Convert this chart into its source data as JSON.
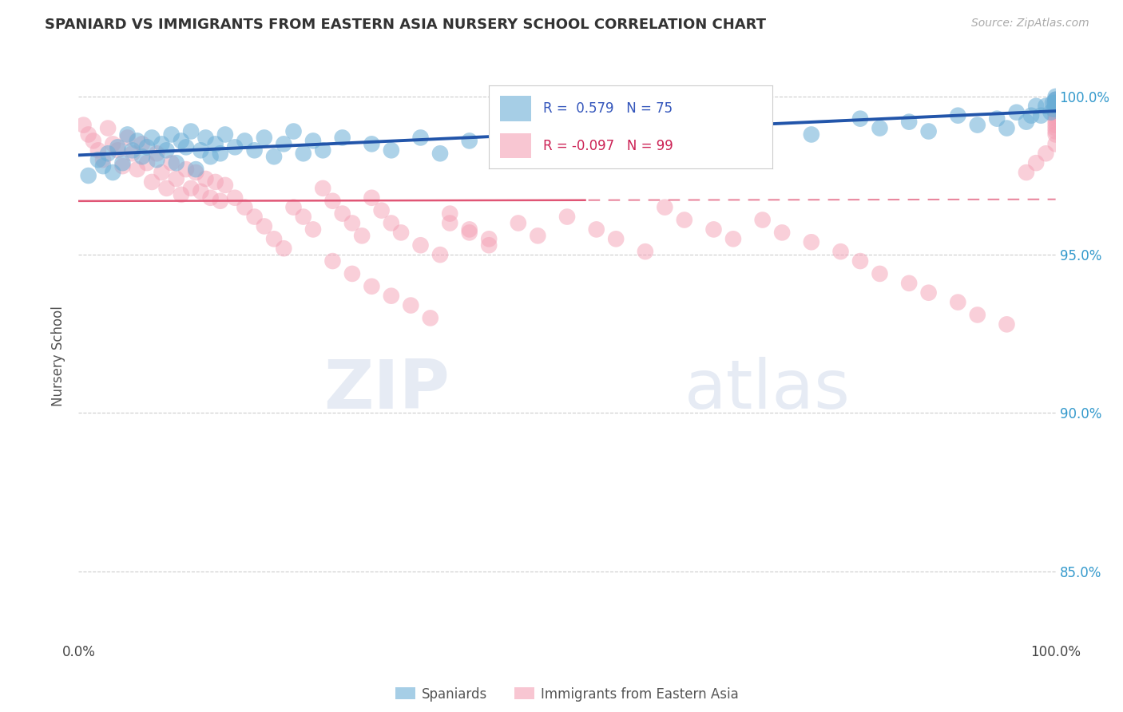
{
  "title": "SPANIARD VS IMMIGRANTS FROM EASTERN ASIA NURSERY SCHOOL CORRELATION CHART",
  "source": "Source: ZipAtlas.com",
  "ylabel": "Nursery School",
  "xlim": [
    0.0,
    1.0
  ],
  "ylim": [
    0.828,
    1.008
  ],
  "R_blue": 0.579,
  "N_blue": 75,
  "R_pink": -0.097,
  "N_pink": 99,
  "blue_scatter_color": "#6baed6",
  "pink_scatter_color": "#f4a0b5",
  "blue_line_color": "#2255aa",
  "pink_line_color": "#e05575",
  "legend_label_blue": "Spaniards",
  "legend_label_pink": "Immigrants from Eastern Asia",
  "y_ticks": [
    0.85,
    0.9,
    0.95,
    1.0
  ],
  "y_tick_labels": [
    "85.0%",
    "90.0%",
    "95.0%",
    "100.0%"
  ],
  "x_tick_labels": [
    "0.0%",
    "100.0%"
  ],
  "blue_x": [
    0.01,
    0.02,
    0.025,
    0.03,
    0.035,
    0.04,
    0.045,
    0.05,
    0.055,
    0.06,
    0.065,
    0.07,
    0.075,
    0.08,
    0.085,
    0.09,
    0.095,
    0.1,
    0.105,
    0.11,
    0.115,
    0.12,
    0.125,
    0.13,
    0.135,
    0.14,
    0.145,
    0.15,
    0.16,
    0.17,
    0.18,
    0.19,
    0.2,
    0.21,
    0.22,
    0.23,
    0.24,
    0.25,
    0.27,
    0.3,
    0.32,
    0.35,
    0.37,
    0.4,
    0.43,
    0.47,
    0.5,
    0.55,
    0.6,
    0.65,
    0.7,
    0.75,
    0.8,
    0.82,
    0.85,
    0.87,
    0.9,
    0.92,
    0.94,
    0.95,
    0.96,
    0.97,
    0.975,
    0.98,
    0.985,
    0.99,
    0.995,
    0.997,
    0.998,
    0.999,
    1.0,
    1.0,
    1.0,
    1.0,
    1.0
  ],
  "blue_y": [
    0.975,
    0.98,
    0.978,
    0.982,
    0.976,
    0.984,
    0.979,
    0.988,
    0.983,
    0.986,
    0.981,
    0.984,
    0.987,
    0.98,
    0.985,
    0.983,
    0.988,
    0.979,
    0.986,
    0.984,
    0.989,
    0.977,
    0.983,
    0.987,
    0.981,
    0.985,
    0.982,
    0.988,
    0.984,
    0.986,
    0.983,
    0.987,
    0.981,
    0.985,
    0.989,
    0.982,
    0.986,
    0.983,
    0.987,
    0.985,
    0.983,
    0.987,
    0.982,
    0.986,
    0.989,
    0.985,
    0.99,
    0.988,
    0.992,
    0.989,
    0.991,
    0.988,
    0.993,
    0.99,
    0.992,
    0.989,
    0.994,
    0.991,
    0.993,
    0.99,
    0.995,
    0.992,
    0.994,
    0.997,
    0.994,
    0.997,
    0.995,
    0.998,
    0.996,
    0.998,
    0.997,
    0.999,
    0.998,
    0.999,
    1.0
  ],
  "pink_x": [
    0.005,
    0.01,
    0.015,
    0.02,
    0.025,
    0.03,
    0.035,
    0.04,
    0.045,
    0.05,
    0.055,
    0.06,
    0.065,
    0.07,
    0.075,
    0.08,
    0.085,
    0.09,
    0.095,
    0.1,
    0.105,
    0.11,
    0.115,
    0.12,
    0.125,
    0.13,
    0.135,
    0.14,
    0.145,
    0.15,
    0.16,
    0.17,
    0.18,
    0.19,
    0.2,
    0.21,
    0.22,
    0.23,
    0.24,
    0.25,
    0.26,
    0.27,
    0.28,
    0.29,
    0.3,
    0.31,
    0.32,
    0.33,
    0.35,
    0.37,
    0.38,
    0.4,
    0.42,
    0.45,
    0.47,
    0.5,
    0.53,
    0.55,
    0.58,
    0.6,
    0.62,
    0.65,
    0.67,
    0.7,
    0.72,
    0.75,
    0.78,
    0.8,
    0.82,
    0.85,
    0.87,
    0.9,
    0.92,
    0.95,
    0.97,
    0.98,
    0.99,
    1.0,
    1.0,
    1.0,
    1.0,
    1.0,
    1.0,
    1.0,
    1.0,
    1.0,
    1.0,
    1.0,
    1.0,
    1.0,
    0.26,
    0.28,
    0.3,
    0.32,
    0.34,
    0.36,
    0.38,
    0.4,
    0.42
  ],
  "pink_y": [
    0.991,
    0.988,
    0.986,
    0.983,
    0.98,
    0.99,
    0.985,
    0.983,
    0.978,
    0.987,
    0.982,
    0.977,
    0.985,
    0.979,
    0.973,
    0.982,
    0.976,
    0.971,
    0.979,
    0.974,
    0.969,
    0.977,
    0.971,
    0.976,
    0.97,
    0.974,
    0.968,
    0.973,
    0.967,
    0.972,
    0.968,
    0.965,
    0.962,
    0.959,
    0.955,
    0.952,
    0.965,
    0.962,
    0.958,
    0.971,
    0.967,
    0.963,
    0.96,
    0.956,
    0.968,
    0.964,
    0.96,
    0.957,
    0.953,
    0.95,
    0.963,
    0.958,
    0.955,
    0.96,
    0.956,
    0.962,
    0.958,
    0.955,
    0.951,
    0.965,
    0.961,
    0.958,
    0.955,
    0.961,
    0.957,
    0.954,
    0.951,
    0.948,
    0.944,
    0.941,
    0.938,
    0.935,
    0.931,
    0.928,
    0.976,
    0.979,
    0.982,
    0.985,
    0.988,
    0.99,
    0.992,
    0.994,
    0.996,
    0.998,
    0.999,
    0.997,
    0.995,
    0.993,
    0.991,
    0.989,
    0.948,
    0.944,
    0.94,
    0.937,
    0.934,
    0.93,
    0.96,
    0.957,
    0.953
  ]
}
